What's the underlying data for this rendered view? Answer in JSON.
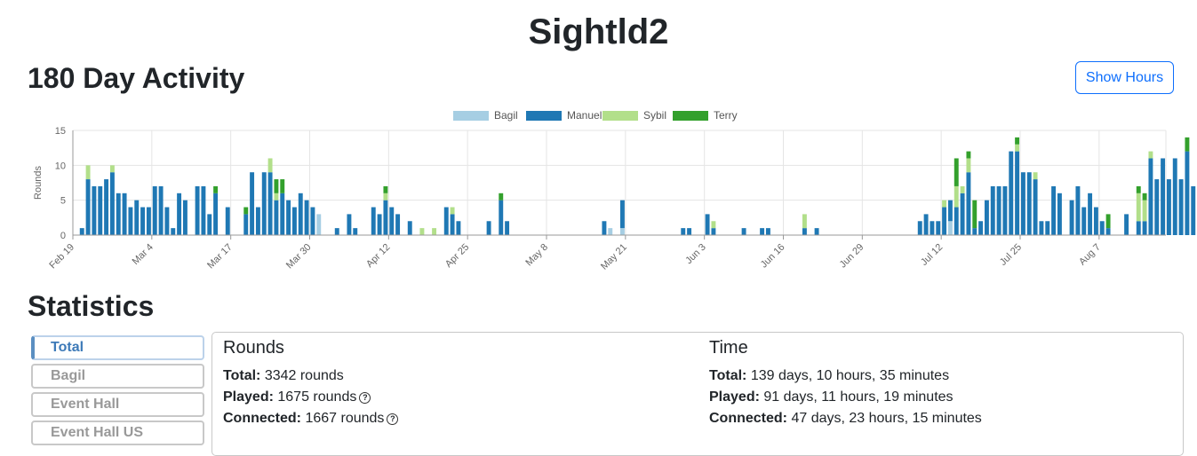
{
  "page": {
    "title": "Sightld2"
  },
  "activity": {
    "title": "180 Day Activity",
    "show_hours_label": "Show Hours"
  },
  "chart_data": {
    "type": "bar",
    "stacked": true,
    "ylabel": "Rounds",
    "ylim": [
      0,
      15
    ],
    "yticks": [
      0,
      5,
      10,
      15
    ],
    "x_tick_labels": [
      "Feb 19",
      "Mar 4",
      "Mar 17",
      "Mar 30",
      "Apr 12",
      "Apr 25",
      "May 8",
      "May 21",
      "Jun 3",
      "Jun 16",
      "Jun 29",
      "Jul 12",
      "Jul 25",
      "Aug 7"
    ],
    "x_tick_every_days": 13,
    "day_count": 180,
    "grid": true,
    "legend_position": "top-center",
    "colors": {
      "Bagil": "#a6cee3",
      "Manuel": "#1f78b4",
      "Sybil": "#b2df8a",
      "Terry": "#33a02c"
    },
    "series_names": [
      "Bagil",
      "Manuel",
      "Sybil",
      "Terry"
    ],
    "days": [
      [
        0,
        0,
        0,
        0
      ],
      [
        0,
        1,
        0,
        0
      ],
      [
        0,
        8,
        2,
        0
      ],
      [
        0,
        7,
        0,
        0
      ],
      [
        0,
        7,
        0,
        0
      ],
      [
        0,
        8,
        0,
        0
      ],
      [
        0,
        9,
        1,
        0
      ],
      [
        0,
        6,
        0,
        0
      ],
      [
        0,
        6,
        0,
        0
      ],
      [
        0,
        4,
        0,
        0
      ],
      [
        0,
        5,
        0,
        0
      ],
      [
        0,
        4,
        0,
        0
      ],
      [
        0,
        4,
        0,
        0
      ],
      [
        0,
        7,
        0,
        0
      ],
      [
        0,
        7,
        0,
        0
      ],
      [
        0,
        4,
        0,
        0
      ],
      [
        0,
        1,
        0,
        0
      ],
      [
        0,
        6,
        0,
        0
      ],
      [
        0,
        5,
        0,
        0
      ],
      [
        0,
        0,
        0,
        0
      ],
      [
        0,
        7,
        0,
        0
      ],
      [
        0,
        7,
        0,
        0
      ],
      [
        0,
        3,
        0,
        0
      ],
      [
        0,
        6,
        0,
        1
      ],
      [
        0,
        0,
        0,
        0
      ],
      [
        0,
        4,
        0,
        0
      ],
      [
        0,
        0,
        0,
        0
      ],
      [
        0,
        0,
        0,
        0
      ],
      [
        0,
        3,
        0,
        1
      ],
      [
        0,
        9,
        0,
        0
      ],
      [
        0,
        4,
        0,
        0
      ],
      [
        0,
        9,
        0,
        0
      ],
      [
        0,
        9,
        2,
        0
      ],
      [
        0,
        5,
        1,
        2
      ],
      [
        0,
        6,
        0,
        2
      ],
      [
        0,
        5,
        0,
        0
      ],
      [
        0,
        4,
        0,
        0
      ],
      [
        0,
        6,
        0,
        0
      ],
      [
        0,
        5,
        0,
        0
      ],
      [
        0,
        4,
        0,
        0
      ],
      [
        3,
        0,
        0,
        0
      ],
      [
        0,
        0,
        0,
        0
      ],
      [
        0,
        0,
        0,
        0
      ],
      [
        0,
        1,
        0,
        0
      ],
      [
        0,
        0,
        0,
        0
      ],
      [
        0,
        3,
        0,
        0
      ],
      [
        0,
        1,
        0,
        0
      ],
      [
        0,
        0,
        0,
        0
      ],
      [
        0,
        0,
        0,
        0
      ],
      [
        0,
        4,
        0,
        0
      ],
      [
        0,
        3,
        0,
        0
      ],
      [
        0,
        5,
        1,
        1
      ],
      [
        0,
        4,
        0,
        0
      ],
      [
        0,
        3,
        0,
        0
      ],
      [
        0,
        0,
        0,
        0
      ],
      [
        0,
        2,
        0,
        0
      ],
      [
        0,
        0,
        0,
        0
      ],
      [
        0,
        0,
        1,
        0
      ],
      [
        0,
        0,
        0,
        0
      ],
      [
        0,
        0,
        1,
        0
      ],
      [
        0,
        0,
        0,
        0
      ],
      [
        0,
        4,
        0,
        0
      ],
      [
        0,
        3,
        1,
        0
      ],
      [
        0,
        2,
        0,
        0
      ],
      [
        0,
        0,
        0,
        0
      ],
      [
        0,
        0,
        0,
        0
      ],
      [
        0,
        0,
        0,
        0
      ],
      [
        0,
        0,
        0,
        0
      ],
      [
        0,
        2,
        0,
        0
      ],
      [
        0,
        0,
        0,
        0
      ],
      [
        0,
        5,
        0,
        1
      ],
      [
        0,
        2,
        0,
        0
      ],
      [
        0,
        0,
        0,
        0
      ],
      [
        0,
        0,
        0,
        0
      ],
      [
        0,
        0,
        0,
        0
      ],
      [
        0,
        0,
        0,
        0
      ],
      [
        0,
        0,
        0,
        0
      ],
      [
        0,
        0,
        0,
        0
      ],
      [
        0,
        0,
        0,
        0
      ],
      [
        0,
        0,
        0,
        0
      ],
      [
        0,
        0,
        0,
        0
      ],
      [
        0,
        0,
        0,
        0
      ],
      [
        0,
        0,
        0,
        0
      ],
      [
        0,
        0,
        0,
        0
      ],
      [
        0,
        0,
        0,
        0
      ],
      [
        0,
        0,
        0,
        0
      ],
      [
        0,
        0,
        0,
        0
      ],
      [
        0,
        2,
        0,
        0
      ],
      [
        1,
        0,
        0,
        0
      ],
      [
        0,
        0,
        0,
        0
      ],
      [
        1,
        4,
        0,
        0
      ],
      [
        0,
        0,
        0,
        0
      ],
      [
        0,
        0,
        0,
        0
      ],
      [
        0,
        0,
        0,
        0
      ],
      [
        0,
        0,
        0,
        0
      ],
      [
        0,
        0,
        0,
        0
      ],
      [
        0,
        0,
        0,
        0
      ],
      [
        0,
        0,
        0,
        0
      ],
      [
        0,
        0,
        0,
        0
      ],
      [
        0,
        0,
        0,
        0
      ],
      [
        0,
        1,
        0,
        0
      ],
      [
        0,
        1,
        0,
        0
      ],
      [
        0,
        0,
        0,
        0
      ],
      [
        0,
        0,
        0,
        0
      ],
      [
        0,
        3,
        0,
        0
      ],
      [
        0,
        1,
        1,
        0
      ],
      [
        0,
        0,
        0,
        0
      ],
      [
        0,
        0,
        0,
        0
      ],
      [
        0,
        0,
        0,
        0
      ],
      [
        0,
        0,
        0,
        0
      ],
      [
        0,
        1,
        0,
        0
      ],
      [
        0,
        0,
        0,
        0
      ],
      [
        0,
        0,
        0,
        0
      ],
      [
        0,
        1,
        0,
        0
      ],
      [
        0,
        1,
        0,
        0
      ],
      [
        0,
        0,
        0,
        0
      ],
      [
        0,
        0,
        0,
        0
      ],
      [
        0,
        0,
        0,
        0
      ],
      [
        0,
        0,
        0,
        0
      ],
      [
        0,
        0,
        0,
        0
      ],
      [
        0,
        1,
        2,
        0
      ],
      [
        0,
        0,
        0,
        0
      ],
      [
        0,
        1,
        0,
        0
      ],
      [
        0,
        0,
        0,
        0
      ],
      [
        0,
        0,
        0,
        0
      ],
      [
        0,
        0,
        0,
        0
      ],
      [
        0,
        0,
        0,
        0
      ],
      [
        0,
        0,
        0,
        0
      ],
      [
        0,
        0,
        0,
        0
      ],
      [
        0,
        0,
        0,
        0
      ],
      [
        0,
        0,
        0,
        0
      ],
      [
        0,
        0,
        0,
        0
      ],
      [
        0,
        0,
        0,
        0
      ],
      [
        0,
        0,
        0,
        0
      ],
      [
        0,
        0,
        0,
        0
      ],
      [
        0,
        0,
        0,
        0
      ],
      [
        0,
        0,
        0,
        0
      ],
      [
        0,
        0,
        0,
        0
      ],
      [
        0,
        0,
        0,
        0
      ],
      [
        0,
        2,
        0,
        0
      ],
      [
        0,
        3,
        0,
        0
      ],
      [
        0,
        2,
        0,
        0
      ],
      [
        0,
        2,
        0,
        0
      ],
      [
        0,
        4,
        1,
        0
      ],
      [
        2,
        3,
        0,
        0
      ],
      [
        0,
        4,
        3,
        4
      ],
      [
        0,
        6,
        1,
        0
      ],
      [
        0,
        9,
        2,
        1
      ],
      [
        0,
        1,
        0,
        4
      ],
      [
        0,
        2,
        0,
        0
      ],
      [
        0,
        5,
        0,
        0
      ],
      [
        0,
        7,
        0,
        0
      ],
      [
        0,
        7,
        0,
        0
      ],
      [
        0,
        7,
        0,
        0
      ],
      [
        0,
        12,
        0,
        0
      ],
      [
        0,
        12,
        1,
        1
      ],
      [
        0,
        9,
        0,
        0
      ],
      [
        0,
        9,
        0,
        0
      ],
      [
        0,
        8,
        1,
        0
      ],
      [
        0,
        2,
        0,
        0
      ],
      [
        0,
        2,
        0,
        0
      ],
      [
        0,
        7,
        0,
        0
      ],
      [
        0,
        6,
        0,
        0
      ],
      [
        0,
        0,
        0,
        0
      ],
      [
        0,
        5,
        0,
        0
      ],
      [
        0,
        7,
        0,
        0
      ],
      [
        0,
        4,
        0,
        0
      ],
      [
        0,
        6,
        0,
        0
      ],
      [
        0,
        4,
        0,
        0
      ],
      [
        0,
        2,
        0,
        0
      ],
      [
        0,
        1,
        0,
        2
      ],
      [
        0,
        0,
        0,
        0
      ],
      [
        0,
        0,
        0,
        0
      ],
      [
        0,
        3,
        0,
        0
      ],
      [
        0,
        0,
        0,
        0
      ],
      [
        0,
        2,
        4,
        1
      ],
      [
        0,
        2,
        3,
        1
      ],
      [
        0,
        11,
        1,
        0
      ],
      [
        0,
        8,
        0,
        0
      ],
      [
        0,
        11,
        0,
        0
      ],
      [
        0,
        8,
        0,
        0
      ],
      [
        0,
        11,
        0,
        0
      ],
      [
        0,
        8,
        0,
        0
      ],
      [
        0,
        12,
        0,
        2
      ],
      [
        0,
        7,
        0,
        0
      ]
    ]
  },
  "statistics": {
    "title": "Statistics",
    "tabs": [
      "Total",
      "Bagil",
      "Event Hall",
      "Event Hall US"
    ],
    "active_tab": "Total",
    "rounds": {
      "heading": "Rounds",
      "total_label": "Total:",
      "total_value": "3342 rounds",
      "played_label": "Played:",
      "played_value": "1675 rounds",
      "connected_label": "Connected:",
      "connected_value": "1667 rounds"
    },
    "time": {
      "heading": "Time",
      "total_label": "Total:",
      "total_value": "139 days, 10 hours, 35 minutes",
      "played_label": "Played:",
      "played_value": "91 days, 11 hours, 19 minutes",
      "connected_label": "Connected:",
      "connected_value": "47 days, 23 hours, 15 minutes"
    }
  }
}
